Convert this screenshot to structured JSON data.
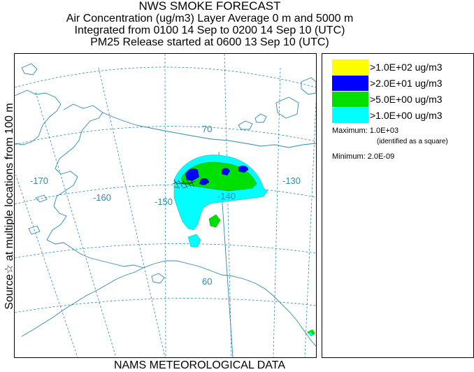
{
  "header": {
    "title": "NWS SMOKE FORECAST",
    "line2": "Air Concentration (ug/m3) Layer Average    0 m and  5000 m",
    "line3": "Integrated from 0100 14 Sep to 0200 14 Sep 10 (UTC)",
    "line4": "PM25 Release started at 0600 13 Sep 10 (UTC)"
  },
  "side_label": "Source☆ at multiple locations from  100 m",
  "footer": "NAMS METEOROLOGICAL DATA",
  "map": {
    "graticule_labels": {
      "lon_170": "-170",
      "lon_160": "-160",
      "lon_150": "-150",
      "lon_140": "-140",
      "lon_130": "-130",
      "lat_70": "70",
      "lat_60": "60"
    },
    "colors": {
      "coast": "#2e8ab0",
      "graticule": "#2e8ab0",
      "label": "#2e8ab0"
    },
    "source_marker": "star"
  },
  "legend": {
    "items": [
      {
        "label": ">1.0E+02 ug/m3",
        "color": "#ffff00"
      },
      {
        "label": ">2.0E+01 ug/m3",
        "color": "#0000ff"
      },
      {
        "label": ">5.0E+00 ug/m3",
        "color": "#00e000"
      },
      {
        "label": ">1.0E+00 ug/m3",
        "color": "#00ffff"
      }
    ],
    "maximum": "Maximum: 1.0E+03",
    "maximum_note": "(identified as a square)",
    "minimum": "Minimum: 2.0E-09"
  }
}
